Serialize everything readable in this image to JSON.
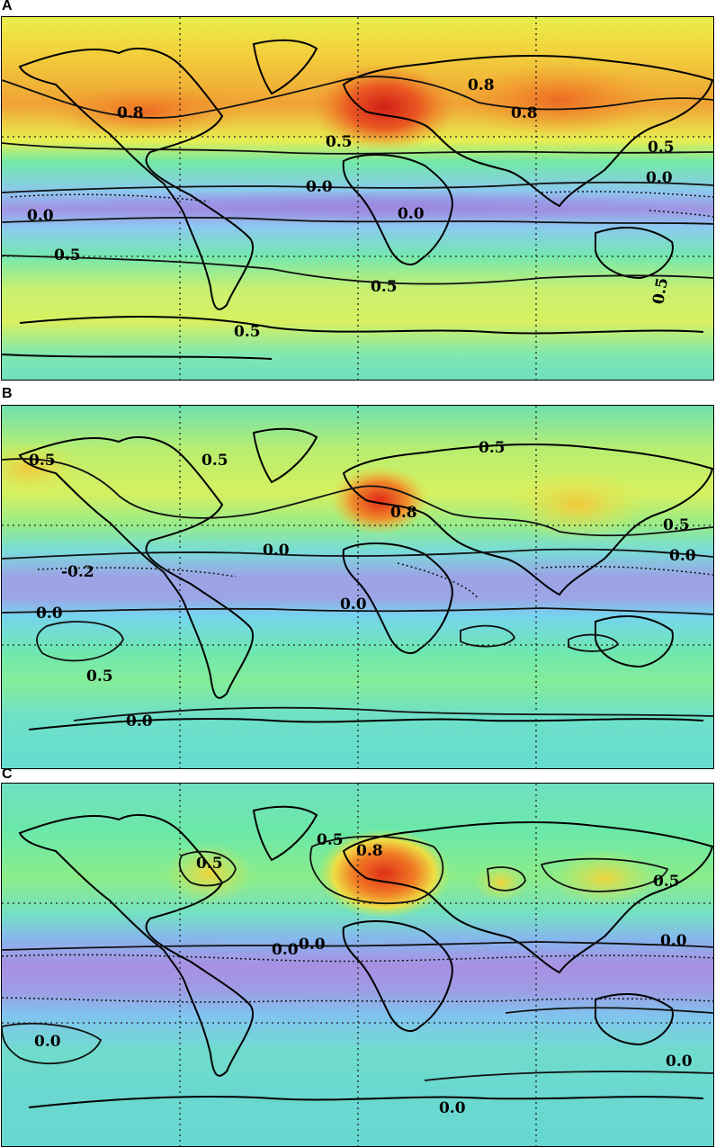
{
  "panels": [
    {
      "letter": "A",
      "contour_labels": [
        "0.8",
        "0.8",
        "0.8",
        "0.5",
        "0.5",
        "0.0",
        "0.0",
        "0.0",
        "0.0",
        "0.5",
        "0.5",
        "0.5",
        "0.5"
      ]
    },
    {
      "letter": "B",
      "contour_labels": [
        "0.5",
        "0.5",
        "0.5",
        "0.8",
        "0.5",
        "0.0",
        "0.0",
        "-0.2",
        "0.0",
        "0.0",
        "0.5",
        "0.0"
      ]
    },
    {
      "letter": "C",
      "contour_labels": [
        "0.5",
        "0.8",
        "0.5",
        "0.5",
        "0.0",
        "0.0",
        "0.0",
        "0.0",
        "0.0",
        "0.0"
      ]
    }
  ],
  "colors": {
    "cold": "#a98ee0",
    "cool": "#6fd8f0",
    "neutral": "#69e8b4",
    "mild": "#e6f04c",
    "warm": "#f5c43a",
    "hot": "#f07c25",
    "hottest": "#d8281a"
  }
}
